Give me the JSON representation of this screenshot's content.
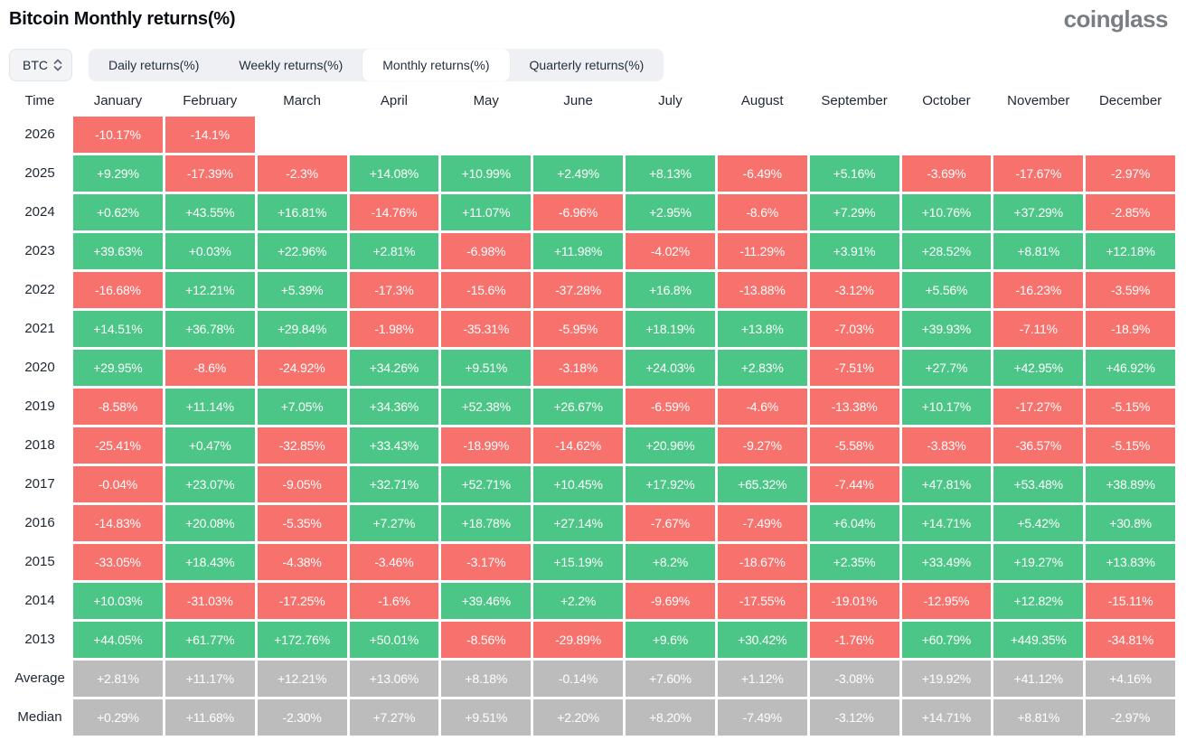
{
  "title": "Bitcoin Monthly returns(%)",
  "logo_text": "coinglass",
  "coin_selector": {
    "value": "BTC",
    "icon": "sort-arrows-icon"
  },
  "tabs": {
    "active_index": 2,
    "items": [
      {
        "label": "Daily returns(%)"
      },
      {
        "label": "Weekly returns(%)"
      },
      {
        "label": "Monthly returns(%)"
      },
      {
        "label": "Quarterly returns(%)"
      }
    ]
  },
  "colors": {
    "positive": "#4CC687",
    "negative": "#F7716D",
    "neutral": "#BCBCBC"
  },
  "table": {
    "columns": [
      "Time",
      "January",
      "February",
      "March",
      "April",
      "May",
      "June",
      "July",
      "August",
      "September",
      "October",
      "November",
      "December"
    ],
    "rows": [
      {
        "label": "2026",
        "summary": false,
        "values": [
          "-10.17%",
          "-14.1%",
          null,
          null,
          null,
          null,
          null,
          null,
          null,
          null,
          null,
          null
        ]
      },
      {
        "label": "2025",
        "summary": false,
        "values": [
          "+9.29%",
          "-17.39%",
          "-2.3%",
          "+14.08%",
          "+10.99%",
          "+2.49%",
          "+8.13%",
          "-6.49%",
          "+5.16%",
          "-3.69%",
          "-17.67%",
          "-2.97%"
        ]
      },
      {
        "label": "2024",
        "summary": false,
        "values": [
          "+0.62%",
          "+43.55%",
          "+16.81%",
          "-14.76%",
          "+11.07%",
          "-6.96%",
          "+2.95%",
          "-8.6%",
          "+7.29%",
          "+10.76%",
          "+37.29%",
          "-2.85%"
        ]
      },
      {
        "label": "2023",
        "summary": false,
        "values": [
          "+39.63%",
          "+0.03%",
          "+22.96%",
          "+2.81%",
          "-6.98%",
          "+11.98%",
          "-4.02%",
          "-11.29%",
          "+3.91%",
          "+28.52%",
          "+8.81%",
          "+12.18%"
        ]
      },
      {
        "label": "2022",
        "summary": false,
        "values": [
          "-16.68%",
          "+12.21%",
          "+5.39%",
          "-17.3%",
          "-15.6%",
          "-37.28%",
          "+16.8%",
          "-13.88%",
          "-3.12%",
          "+5.56%",
          "-16.23%",
          "-3.59%"
        ]
      },
      {
        "label": "2021",
        "summary": false,
        "values": [
          "+14.51%",
          "+36.78%",
          "+29.84%",
          "-1.98%",
          "-35.31%",
          "-5.95%",
          "+18.19%",
          "+13.8%",
          "-7.03%",
          "+39.93%",
          "-7.11%",
          "-18.9%"
        ]
      },
      {
        "label": "2020",
        "summary": false,
        "values": [
          "+29.95%",
          "-8.6%",
          "-24.92%",
          "+34.26%",
          "+9.51%",
          "-3.18%",
          "+24.03%",
          "+2.83%",
          "-7.51%",
          "+27.7%",
          "+42.95%",
          "+46.92%"
        ]
      },
      {
        "label": "2019",
        "summary": false,
        "values": [
          "-8.58%",
          "+11.14%",
          "+7.05%",
          "+34.36%",
          "+52.38%",
          "+26.67%",
          "-6.59%",
          "-4.6%",
          "-13.38%",
          "+10.17%",
          "-17.27%",
          "-5.15%"
        ]
      },
      {
        "label": "2018",
        "summary": false,
        "values": [
          "-25.41%",
          "+0.47%",
          "-32.85%",
          "+33.43%",
          "-18.99%",
          "-14.62%",
          "+20.96%",
          "-9.27%",
          "-5.58%",
          "-3.83%",
          "-36.57%",
          "-5.15%"
        ]
      },
      {
        "label": "2017",
        "summary": false,
        "values": [
          "-0.04%",
          "+23.07%",
          "-9.05%",
          "+32.71%",
          "+52.71%",
          "+10.45%",
          "+17.92%",
          "+65.32%",
          "-7.44%",
          "+47.81%",
          "+53.48%",
          "+38.89%"
        ]
      },
      {
        "label": "2016",
        "summary": false,
        "values": [
          "-14.83%",
          "+20.08%",
          "-5.35%",
          "+7.27%",
          "+18.78%",
          "+27.14%",
          "-7.67%",
          "-7.49%",
          "+6.04%",
          "+14.71%",
          "+5.42%",
          "+30.8%"
        ]
      },
      {
        "label": "2015",
        "summary": false,
        "values": [
          "-33.05%",
          "+18.43%",
          "-4.38%",
          "-3.46%",
          "-3.17%",
          "+15.19%",
          "+8.2%",
          "-18.67%",
          "+2.35%",
          "+33.49%",
          "+19.27%",
          "+13.83%"
        ]
      },
      {
        "label": "2014",
        "summary": false,
        "values": [
          "+10.03%",
          "-31.03%",
          "-17.25%",
          "-1.6%",
          "+39.46%",
          "+2.2%",
          "-9.69%",
          "-17.55%",
          "-19.01%",
          "-12.95%",
          "+12.82%",
          "-15.11%"
        ]
      },
      {
        "label": "2013",
        "summary": false,
        "values": [
          "+44.05%",
          "+61.77%",
          "+172.76%",
          "+50.01%",
          "-8.56%",
          "-29.89%",
          "+9.6%",
          "+30.42%",
          "-1.76%",
          "+60.79%",
          "+449.35%",
          "-34.81%"
        ]
      },
      {
        "label": "Average",
        "summary": true,
        "values": [
          "+2.81%",
          "+11.17%",
          "+12.21%",
          "+13.06%",
          "+8.18%",
          "-0.14%",
          "+7.60%",
          "+1.12%",
          "-3.08%",
          "+19.92%",
          "+41.12%",
          "+4.16%"
        ]
      },
      {
        "label": "Median",
        "summary": true,
        "values": [
          "+0.29%",
          "+11.68%",
          "-2.30%",
          "+7.27%",
          "+9.51%",
          "+2.20%",
          "+8.20%",
          "-7.49%",
          "-3.12%",
          "+14.71%",
          "+8.81%",
          "-2.97%"
        ]
      }
    ]
  }
}
